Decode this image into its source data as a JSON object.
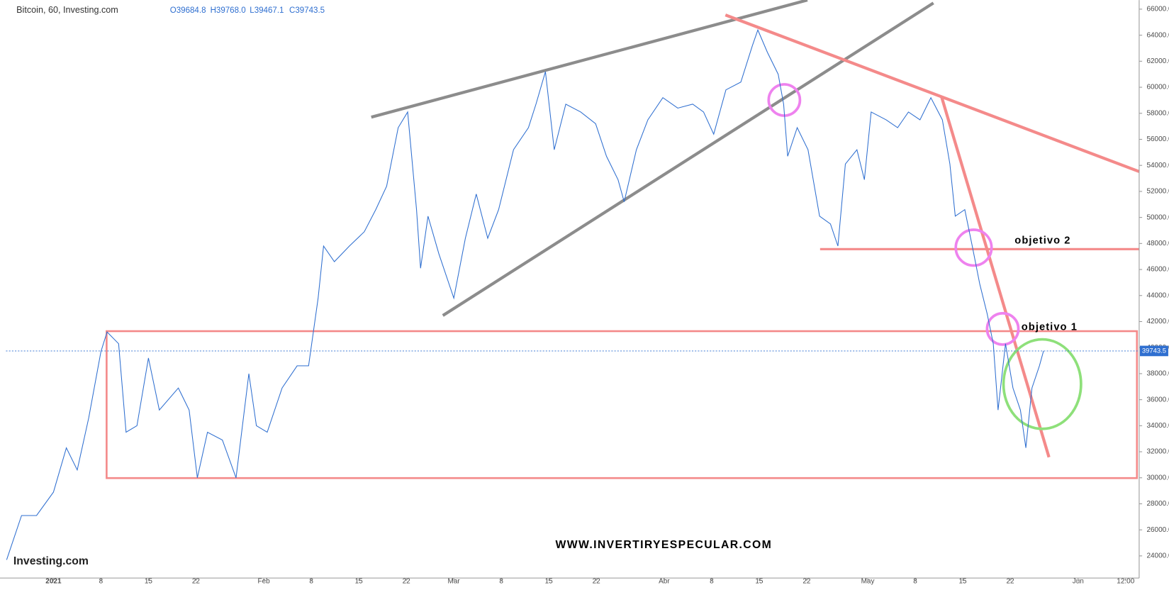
{
  "chart_data": {
    "type": "line",
    "title": "Bitcoin, 60, Investing.com",
    "ohlc": [
      "O39684.8",
      "H39768.0",
      "L39467.1",
      "C39743.5"
    ],
    "color": "#2f6fd0",
    "x": [
      -6.9,
      -4.7,
      -2.5,
      0,
      1.9,
      3.5,
      5.2,
      7,
      7.9,
      9.6,
      10.7,
      12.3,
      14,
      15.6,
      18.4,
      20,
      21.2,
      22.7,
      24.9,
      26.9,
      28.8,
      29.9,
      31.5,
      33.7,
      35.9,
      37.6,
      39,
      39.8,
      41.4,
      43.6,
      45.8,
      47.5,
      49.1,
      50.8,
      52.2,
      53.5,
      54.1,
      55.2,
      56.8,
      59,
      60.7,
      62.3,
      64,
      65.6,
      67.8,
      70,
      71.1,
      72.5,
      73.8,
      75.5,
      77.7,
      79.9,
      81.5,
      83.2,
      84.1,
      85.9,
      87.6,
      89.8,
      92,
      94.2,
      95.8,
      97.3,
      99.1,
      101.3,
      103,
      103.8,
      105.2,
      106.8,
      107.6,
      108.2,
      109.6,
      111.2,
      112.9,
      114.5,
      115.6,
      116.7,
      118.4,
      119.5,
      120.5,
      122.7,
      124.4,
      126,
      127.7,
      129.3,
      131,
      132.1,
      132.9,
      134.3,
      135.4,
      136.5,
      137.6,
      138.5,
      139.2,
      140.3,
      141.4,
      142.5,
      143.3,
      144.2,
      145.3,
      145.9
    ],
    "values": [
      23700,
      27100,
      27100,
      28900,
      32300,
      30600,
      34600,
      39700,
      41200,
      40300,
      33500,
      34000,
      39200,
      35200,
      36900,
      35200,
      30000,
      33500,
      32900,
      30000,
      38000,
      34000,
      33500,
      36900,
      38600,
      38600,
      43800,
      47800,
      46600,
      47800,
      48900,
      50600,
      52400,
      56900,
      58100,
      50600,
      46100,
      50100,
      47200,
      43800,
      48400,
      51800,
      48400,
      50600,
      55200,
      56900,
      58700,
      61200,
      55200,
      58700,
      58100,
      57200,
      54700,
      52900,
      51200,
      55200,
      57500,
      59200,
      58400,
      58700,
      58100,
      56400,
      59800,
      60400,
      63200,
      64400,
      62700,
      61000,
      58700,
      54700,
      56900,
      55200,
      50100,
      49500,
      47800,
      54100,
      55200,
      52900,
      58100,
      57500,
      56900,
      58100,
      57500,
      59200,
      57500,
      54100,
      50100,
      50600,
      47800,
      44900,
      42600,
      40300,
      35200,
      40300,
      36900,
      35200,
      32300,
      36900,
      38600,
      39743.5
    ],
    "last_price": 39743.5,
    "xlim": [
      -7,
      160
    ],
    "ylim": [
      22300,
      66700
    ],
    "xticks": [
      {
        "value": 0,
        "label": "2021"
      },
      {
        "value": 7,
        "label": "8"
      },
      {
        "value": 14,
        "label": "15"
      },
      {
        "value": 21,
        "label": "22"
      },
      {
        "value": 31,
        "label": "Feb"
      },
      {
        "value": 38,
        "label": "8"
      },
      {
        "value": 45,
        "label": "15"
      },
      {
        "value": 52,
        "label": "22"
      },
      {
        "value": 59,
        "label": "Mar"
      },
      {
        "value": 66,
        "label": "8"
      },
      {
        "value": 73,
        "label": "15"
      },
      {
        "value": 80,
        "label": "22"
      },
      {
        "value": 90,
        "label": "Abr"
      },
      {
        "value": 97,
        "label": "8"
      },
      {
        "value": 104,
        "label": "15"
      },
      {
        "value": 111,
        "label": "22"
      },
      {
        "value": 120,
        "label": "May"
      },
      {
        "value": 127,
        "label": "8"
      },
      {
        "value": 134,
        "label": "15"
      },
      {
        "value": 141,
        "label": "22"
      },
      {
        "value": 151,
        "label": "Jun"
      },
      {
        "value": 158,
        "label": "12:00"
      }
    ],
    "yticks": [
      {
        "value": 24000,
        "label": "24000.0"
      },
      {
        "value": 26000,
        "label": "26000.0"
      },
      {
        "value": 28000,
        "label": "28000.0"
      },
      {
        "value": 30000,
        "label": "30000.0"
      },
      {
        "value": 32000,
        "label": "32000.0"
      },
      {
        "value": 34000,
        "label": "34000.0"
      },
      {
        "value": 36000,
        "label": "36000.0"
      },
      {
        "value": 38000,
        "label": "38000.0"
      },
      {
        "value": 40000,
        "label": "40000.0"
      },
      {
        "value": 42000,
        "label": "42000.0"
      },
      {
        "value": 44000,
        "label": "44000.0"
      },
      {
        "value": 46000,
        "label": "46000.0"
      },
      {
        "value": 48000,
        "label": "48000.0"
      },
      {
        "value": 50000,
        "label": "50000.0"
      },
      {
        "value": 52000,
        "label": "52000.0"
      },
      {
        "value": 54000,
        "label": "54000.0"
      },
      {
        "value": 56000,
        "label": "56000.0"
      },
      {
        "value": 58000,
        "label": "58000.0"
      },
      {
        "value": 60000,
        "label": "60000.0"
      },
      {
        "value": 62000,
        "label": "62000.0"
      },
      {
        "value": 64000,
        "label": "64000.0"
      },
      {
        "value": 66000,
        "label": "66000.0"
      }
    ],
    "annotations": [
      "objetivo 2",
      "objetivo 1",
      "WWW.INVERTIRYESPECULAR.COM"
    ],
    "source_logo": "Investing.com"
  }
}
